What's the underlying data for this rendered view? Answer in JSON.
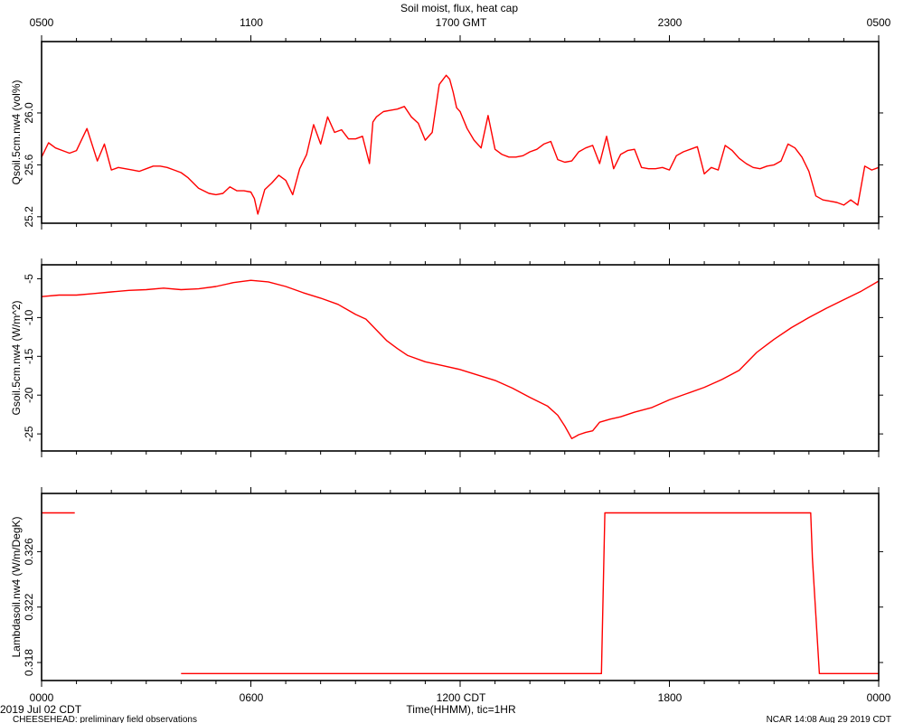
{
  "header": {
    "title": "Soil moist, flux, heat cap"
  },
  "top_axis": {
    "tick_labels": [
      "0500",
      "1100",
      "1700 GMT",
      "2300",
      "0500"
    ]
  },
  "bottom_axis": {
    "tick_labels": [
      "0000",
      "0600",
      "1200 CDT",
      "1800",
      "0000"
    ],
    "label": "Time(HHMM), tic=1HR"
  },
  "footer": {
    "date": "2019 Jul 02 CDT",
    "project": "CHEESEHEAD: preliminary field observations",
    "stamp": "NCAR 14:08 Aug 29 2019 CDT"
  },
  "colors": {
    "series": "#ff0000",
    "axes": "#000000",
    "background": "#ffffff"
  },
  "chart_data": [
    {
      "type": "line",
      "title": "Soil moist, flux, heat cap",
      "xlabel": "",
      "ylabel": "Qsoil.5cm.nw4 (vol%)",
      "xlim": [
        0,
        24
      ],
      "ylim": [
        25.15,
        26.55
      ],
      "yticks": [
        25.2,
        25.6,
        26.0
      ],
      "ytick_labels": [
        "25.2",
        "25.6",
        "26.0"
      ],
      "series": [
        {
          "x": [
            0.0,
            0.2,
            0.4,
            0.6,
            0.8,
            1.0,
            1.3,
            1.6,
            1.8,
            2.0,
            2.2,
            2.4,
            2.6,
            2.8,
            3.0,
            3.2,
            3.4,
            3.6,
            3.8,
            4.0,
            4.2,
            4.5,
            4.8,
            5.0,
            5.2,
            5.4,
            5.6,
            5.8,
            6.0,
            6.1,
            6.2,
            6.4,
            6.6,
            6.8,
            7.0,
            7.2,
            7.4,
            7.6,
            7.8,
            8.0,
            8.2,
            8.4,
            8.6,
            8.8,
            9.0,
            9.2,
            9.4,
            9.5,
            9.6,
            9.8,
            10.0,
            10.2,
            10.4,
            10.6,
            10.8,
            11.0,
            11.2,
            11.4,
            11.6,
            11.7,
            11.8,
            11.9,
            12.0,
            12.2,
            12.4,
            12.6,
            12.8,
            13.0,
            13.2,
            13.4,
            13.6,
            13.8,
            14.0,
            14.2,
            14.4,
            14.6,
            14.8,
            15.0,
            15.2,
            15.4,
            15.6,
            15.8,
            16.0,
            16.2,
            16.4,
            16.6,
            16.8,
            17.0,
            17.2,
            17.4,
            17.6,
            17.8,
            18.0,
            18.2,
            18.4,
            18.6,
            18.8,
            19.0,
            19.2,
            19.4,
            19.6,
            19.8,
            20.0,
            20.2,
            20.4,
            20.6,
            20.8,
            21.0,
            21.2,
            21.4,
            21.6,
            21.8,
            22.0,
            22.2,
            22.4,
            22.6,
            22.8,
            23.0,
            23.2,
            23.4,
            23.6,
            23.8,
            24.0
          ],
          "values": [
            25.66,
            25.77,
            25.73,
            25.71,
            25.69,
            25.71,
            25.88,
            25.63,
            25.76,
            25.56,
            25.58,
            25.57,
            25.56,
            25.55,
            25.57,
            25.59,
            25.59,
            25.58,
            25.56,
            25.54,
            25.5,
            25.42,
            25.38,
            25.37,
            25.38,
            25.43,
            25.4,
            25.4,
            25.39,
            25.34,
            25.22,
            25.41,
            25.46,
            25.52,
            25.48,
            25.37,
            25.57,
            25.68,
            25.91,
            25.76,
            25.97,
            25.85,
            25.87,
            25.8,
            25.8,
            25.82,
            25.61,
            25.93,
            25.97,
            26.01,
            26.02,
            26.03,
            26.05,
            25.97,
            25.92,
            25.79,
            25.85,
            26.22,
            26.29,
            26.26,
            26.16,
            26.04,
            26.01,
            25.88,
            25.79,
            25.73,
            25.98,
            25.72,
            25.68,
            25.66,
            25.66,
            25.67,
            25.7,
            25.72,
            25.76,
            25.78,
            25.64,
            25.62,
            25.63,
            25.7,
            25.73,
            25.75,
            25.61,
            25.82,
            25.57,
            25.68,
            25.71,
            25.72,
            25.58,
            25.57,
            25.57,
            25.58,
            25.56,
            25.67,
            25.7,
            25.72,
            25.74,
            25.53,
            25.58,
            25.56,
            25.75,
            25.71,
            25.65,
            25.61,
            25.58,
            25.57,
            25.59,
            25.6,
            25.63,
            25.76,
            25.73,
            25.66,
            25.55,
            25.36,
            25.33,
            25.32,
            25.31,
            25.29,
            25.33,
            25.29,
            25.59,
            25.56,
            25.58
          ]
        }
      ]
    },
    {
      "type": "line",
      "title": "",
      "xlabel": "",
      "ylabel": "Gsoil.5cm.nw4 (W/m^2)",
      "xlim": [
        0,
        24
      ],
      "ylim": [
        -27.2,
        -3.2
      ],
      "yticks": [
        -25,
        -20,
        -15,
        -10,
        -5
      ],
      "ytick_labels": [
        "-25",
        "-20",
        "-15",
        "-10",
        "-5"
      ],
      "series": [
        {
          "x": [
            0.0,
            0.5,
            1.0,
            1.5,
            2.0,
            2.5,
            3.0,
            3.5,
            4.0,
            4.5,
            5.0,
            5.5,
            6.0,
            6.5,
            7.0,
            7.5,
            8.0,
            8.5,
            9.0,
            9.3,
            9.6,
            9.9,
            10.2,
            10.5,
            11.0,
            11.5,
            12.0,
            12.5,
            13.0,
            13.5,
            14.0,
            14.5,
            14.8,
            15.0,
            15.2,
            15.4,
            15.6,
            15.8,
            16.0,
            16.3,
            16.6,
            17.0,
            17.5,
            18.0,
            18.5,
            19.0,
            19.5,
            20.0,
            20.5,
            21.0,
            21.5,
            22.0,
            22.5,
            23.0,
            23.5,
            24.0
          ],
          "values": [
            -7.3,
            -7.1,
            -7.1,
            -6.9,
            -6.7,
            -6.5,
            -6.4,
            -6.2,
            -6.4,
            -6.3,
            -6.0,
            -5.5,
            -5.2,
            -5.4,
            -6.0,
            -6.8,
            -7.5,
            -8.3,
            -9.6,
            -10.2,
            -11.6,
            -13.0,
            -14.0,
            -14.9,
            -15.7,
            -16.2,
            -16.7,
            -17.4,
            -18.1,
            -19.1,
            -20.3,
            -21.4,
            -22.6,
            -24.0,
            -25.6,
            -25.1,
            -24.8,
            -24.6,
            -23.5,
            -23.1,
            -22.8,
            -22.2,
            -21.6,
            -20.6,
            -19.8,
            -19.0,
            -18.0,
            -16.8,
            -14.5,
            -12.8,
            -11.3,
            -10.0,
            -8.8,
            -7.7,
            -6.6,
            -5.3
          ]
        }
      ]
    },
    {
      "type": "line",
      "title": "",
      "xlabel": "Time(HHMM), tic=1HR",
      "ylabel": "Lambdasoil.nw4 (W/m/DegK)",
      "xlim": [
        0,
        24
      ],
      "ylim": [
        0.3167,
        0.3302
      ],
      "yticks": [
        0.318,
        0.322,
        0.326
      ],
      "ytick_labels": [
        "0.318",
        "0.322",
        "0.326"
      ],
      "series": [
        {
          "x": [
            0.0,
            0.95
          ],
          "values": [
            0.3288,
            0.3288
          ]
        },
        {
          "x": [
            4.0,
            16.05,
            16.15,
            22.05,
            22.1,
            22.3,
            24.0
          ],
          "values": [
            0.3172,
            0.3172,
            0.3288,
            0.3288,
            0.3255,
            0.3172,
            0.3172
          ]
        }
      ]
    }
  ]
}
